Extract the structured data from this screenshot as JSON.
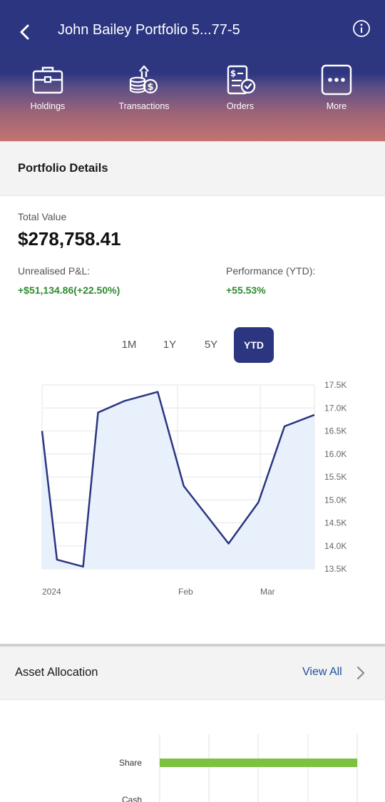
{
  "header": {
    "title": "John Bailey Portfolio 5...77-5",
    "nav": [
      {
        "label": "Holdings",
        "icon": "briefcase-icon"
      },
      {
        "label": "Transactions",
        "icon": "coins-upload-icon"
      },
      {
        "label": "Orders",
        "icon": "invoice-check-icon"
      },
      {
        "label": "More",
        "icon": "more-dots-icon"
      }
    ]
  },
  "portfolio": {
    "section_title": "Portfolio Details",
    "total_value_label": "Total Value",
    "total_value": "$278,758.41",
    "pnl_label": "Unrealised P&L:",
    "pnl_value": "+$51,134.86(+22.50%)",
    "perf_label": "Performance (YTD):",
    "perf_value": "+55.53%"
  },
  "ranges": [
    "1M",
    "1Y",
    "5Y",
    "YTD"
  ],
  "active_range": "YTD",
  "chart_data": [
    {
      "type": "area",
      "x": [
        "2024-01-01",
        "2024-01-05",
        "2024-01-12",
        "2024-01-16",
        "2024-01-23",
        "2024-02-01",
        "2024-02-08",
        "2024-02-20",
        "2024-02-28",
        "2024-03-06",
        "2024-03-14"
      ],
      "y": [
        16500,
        13700,
        13550,
        16900,
        17150,
        17350,
        15300,
        14050,
        14950,
        16600,
        16850
      ],
      "x_tick_labels": [
        "2024",
        "Feb",
        "Mar"
      ],
      "y_tick_labels": [
        "17.5K",
        "17.0K",
        "16.5K",
        "16.0K",
        "15.5K",
        "15.0K",
        "14.5K",
        "14.0K",
        "13.5K"
      ],
      "ylim": [
        13500,
        17500
      ],
      "grid": true,
      "line_color": "#2b3580",
      "fill_color": "#e8f1fb"
    },
    {
      "type": "bar",
      "categories": [
        "Share",
        "Cash"
      ],
      "values": [
        100,
        0
      ],
      "color": "#7cc142"
    }
  ],
  "allocation": {
    "section_title": "Asset Allocation",
    "view_all": "View All"
  }
}
